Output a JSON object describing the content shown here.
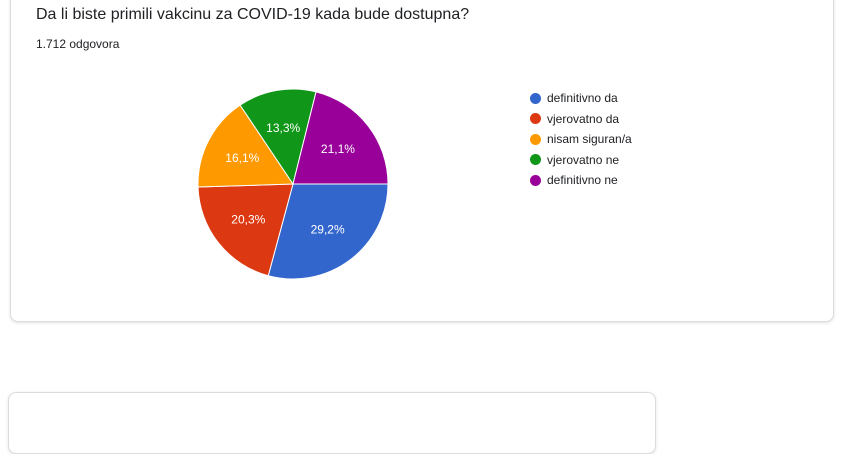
{
  "question": {
    "title": "Da li biste primili vakcinu za COVID-19 kada bude dostupna?",
    "responses": "1.712 odgovora"
  },
  "chart_data": {
    "type": "pie",
    "categories": [
      "definitivno da",
      "vjerovatno da",
      "nisam siguran/a",
      "vjerovatno ne",
      "definitivno ne"
    ],
    "values": [
      29.2,
      20.3,
      16.1,
      13.3,
      21.1
    ],
    "labels": [
      "29,2%",
      "20,3%",
      "16,1%",
      "13,3%",
      "21,1%"
    ],
    "colors": [
      "#3366cc",
      "#dc3912",
      "#ff9900",
      "#109618",
      "#990099"
    ],
    "legend_position": "right"
  }
}
